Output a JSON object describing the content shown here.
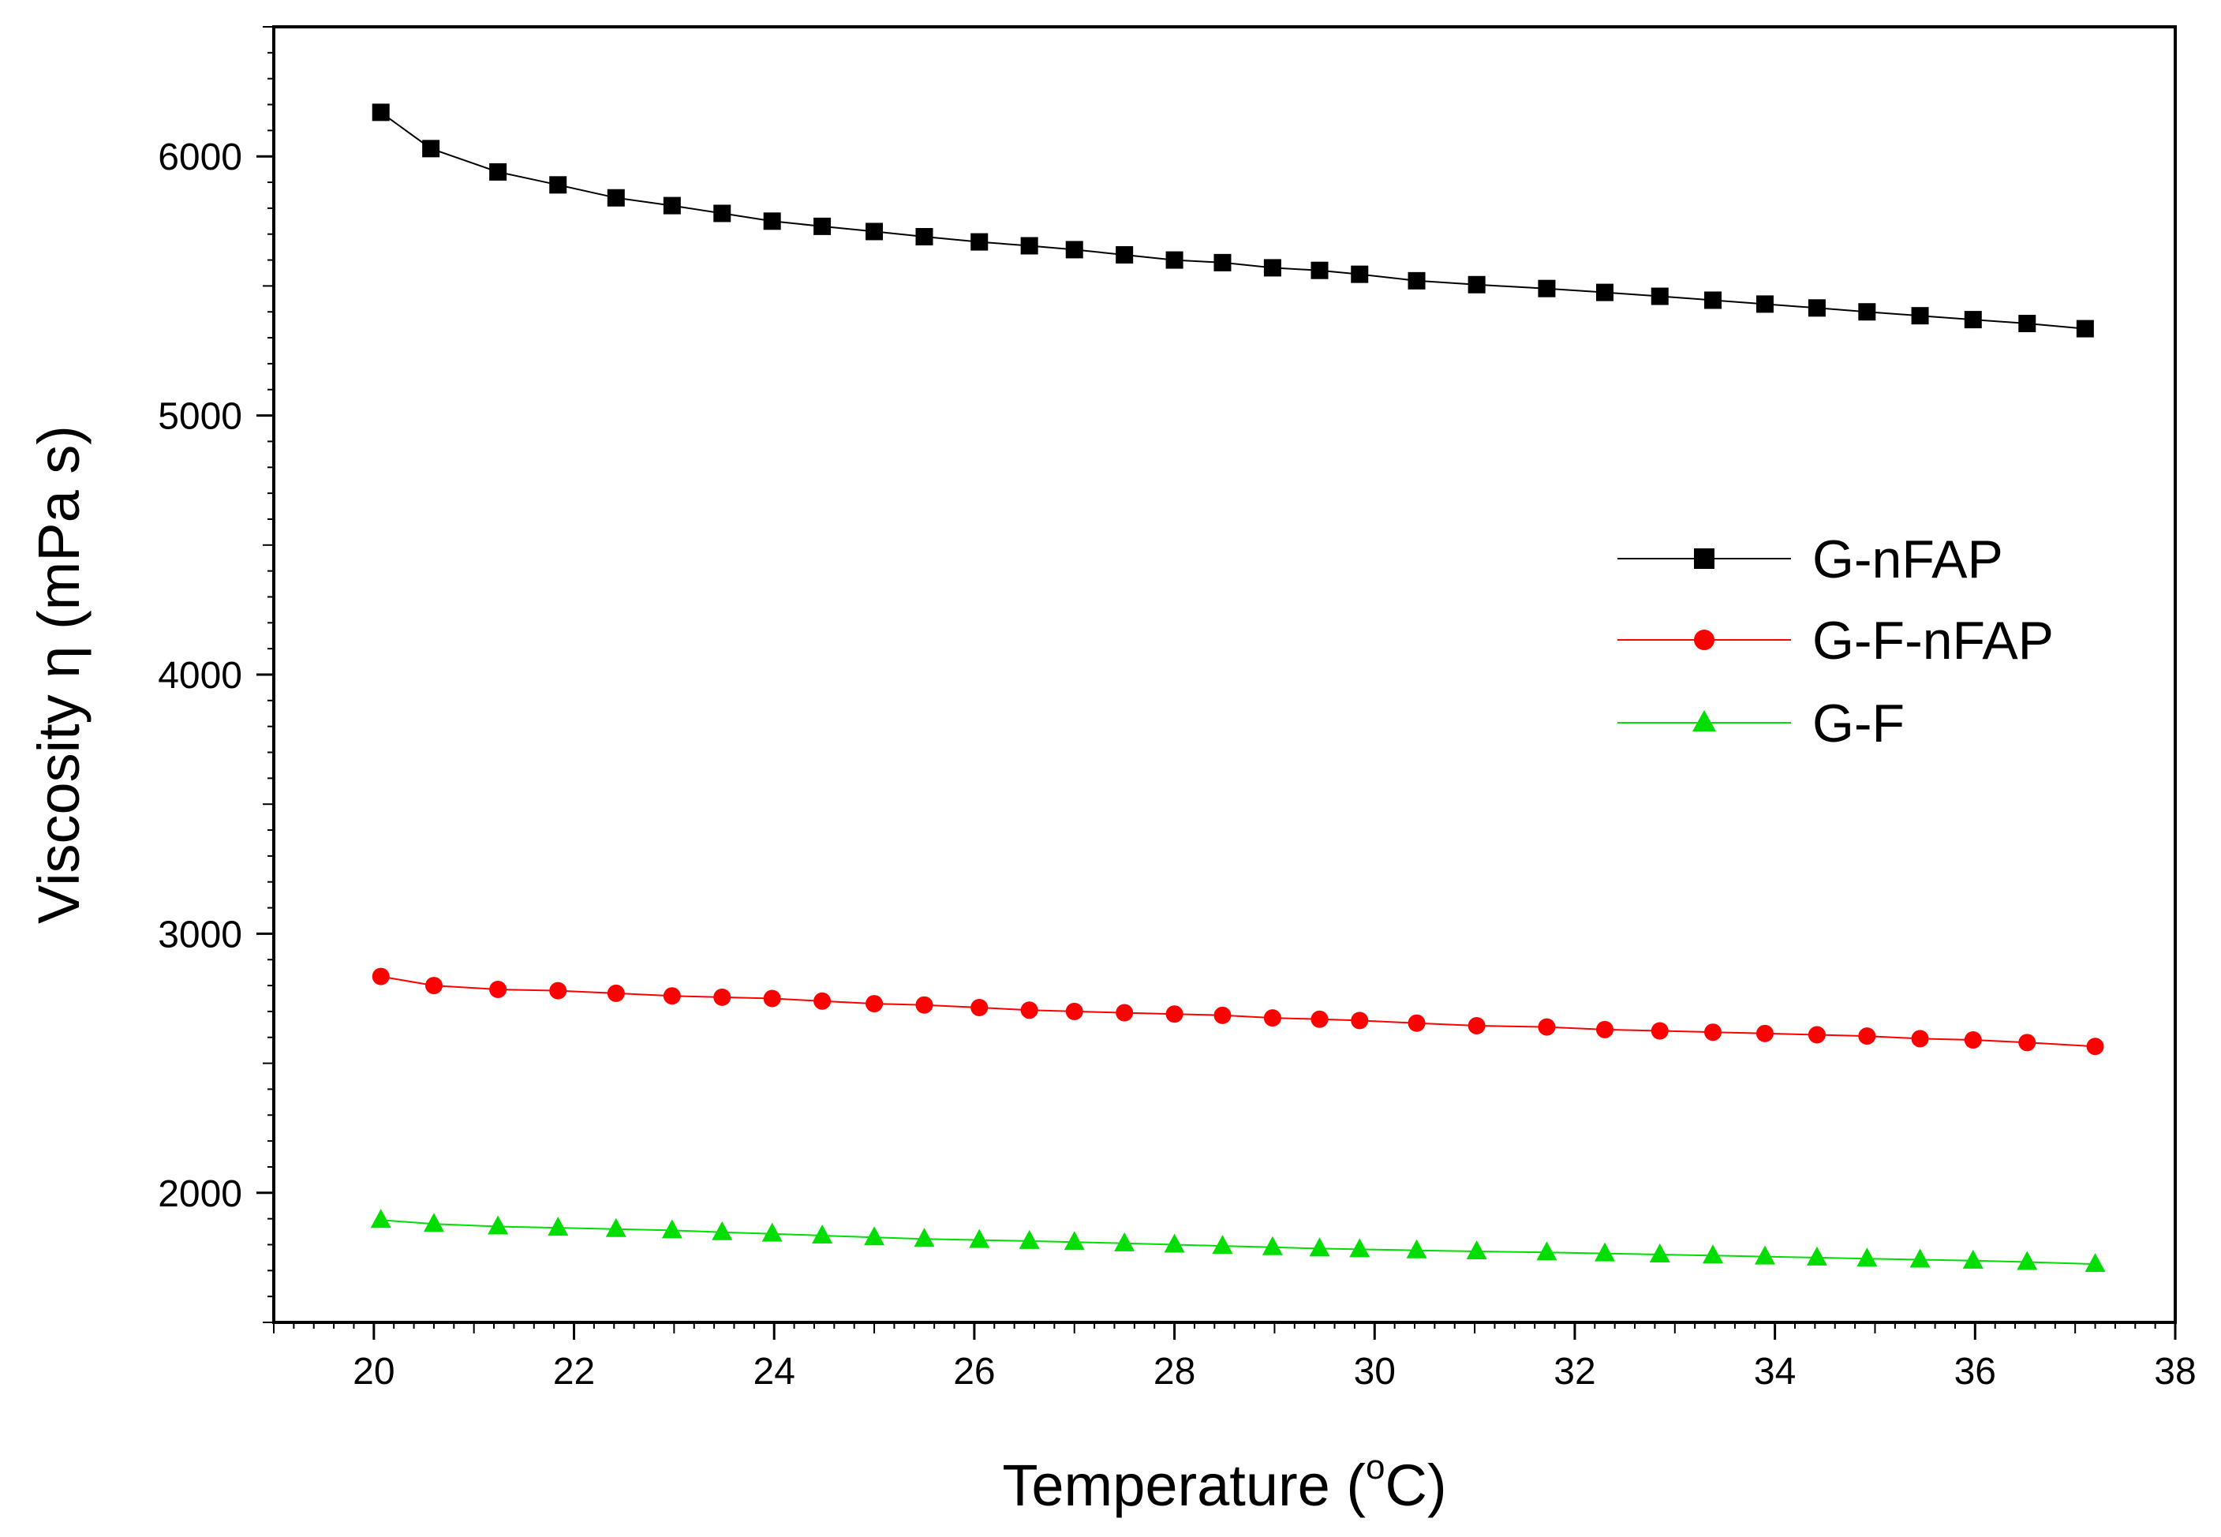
{
  "chart_data": {
    "type": "line",
    "title": "",
    "xlabel": "Temperature (",
    "xlabel_unit_sup": "o",
    "xlabel_unit_tail": "C)",
    "ylabel": "Viscosity η (mPa s)",
    "xlim": [
      19,
      38
    ],
    "ylim": [
      1500,
      6500
    ],
    "x_ticks": [
      20,
      22,
      24,
      26,
      28,
      30,
      32,
      34,
      36,
      38
    ],
    "y_ticks": [
      2000,
      3000,
      4000,
      5000,
      6000
    ],
    "grid": false,
    "legend_position": "center-right",
    "series": [
      {
        "name": "G-nFAP",
        "color": "#000000",
        "marker": "square",
        "x": [
          20.07,
          20.57,
          21.24,
          21.84,
          22.42,
          22.98,
          23.48,
          23.98,
          24.48,
          25.0,
          25.5,
          26.05,
          26.55,
          27.0,
          27.5,
          28.0,
          28.48,
          28.98,
          29.45,
          29.85,
          30.42,
          31.02,
          31.72,
          32.3,
          32.85,
          33.38,
          33.9,
          34.42,
          34.92,
          35.45,
          35.98,
          36.52,
          37.1
        ],
        "y": [
          6170,
          6030,
          5940,
          5890,
          5840,
          5810,
          5780,
          5750,
          5730,
          5710,
          5690,
          5670,
          5655,
          5640,
          5620,
          5600,
          5590,
          5570,
          5560,
          5545,
          5520,
          5505,
          5490,
          5475,
          5460,
          5445,
          5430,
          5415,
          5400,
          5385,
          5370,
          5355,
          5335
        ]
      },
      {
        "name": "G-F-nFAP",
        "color": "#ff0000",
        "marker": "circle",
        "x": [
          20.07,
          20.6,
          21.24,
          21.84,
          22.42,
          22.98,
          23.48,
          23.98,
          24.48,
          25.0,
          25.5,
          26.05,
          26.55,
          27.0,
          27.5,
          28.0,
          28.48,
          28.98,
          29.45,
          29.85,
          30.42,
          31.02,
          31.72,
          32.3,
          32.85,
          33.38,
          33.9,
          34.42,
          34.92,
          35.45,
          35.98,
          36.52,
          37.2
        ],
        "y": [
          2835,
          2800,
          2785,
          2780,
          2770,
          2760,
          2755,
          2750,
          2740,
          2730,
          2725,
          2715,
          2705,
          2700,
          2695,
          2690,
          2685,
          2675,
          2670,
          2665,
          2655,
          2645,
          2640,
          2630,
          2625,
          2620,
          2615,
          2610,
          2605,
          2595,
          2590,
          2580,
          2565
        ]
      },
      {
        "name": "G-F",
        "color": "#00dd00",
        "marker": "triangle",
        "x": [
          20.07,
          20.6,
          21.24,
          21.84,
          22.42,
          22.98,
          23.48,
          23.98,
          24.48,
          25.0,
          25.5,
          26.05,
          26.55,
          27.0,
          27.5,
          28.0,
          28.48,
          28.98,
          29.45,
          29.85,
          30.42,
          31.02,
          31.72,
          32.3,
          32.85,
          33.38,
          33.9,
          34.42,
          34.92,
          35.45,
          35.98,
          36.52,
          37.2
        ],
        "y": [
          1895,
          1880,
          1870,
          1865,
          1860,
          1855,
          1848,
          1842,
          1835,
          1828,
          1822,
          1818,
          1814,
          1810,
          1805,
          1800,
          1795,
          1790,
          1785,
          1782,
          1778,
          1774,
          1770,
          1766,
          1762,
          1758,
          1754,
          1750,
          1746,
          1742,
          1738,
          1733,
          1725
        ]
      }
    ]
  }
}
